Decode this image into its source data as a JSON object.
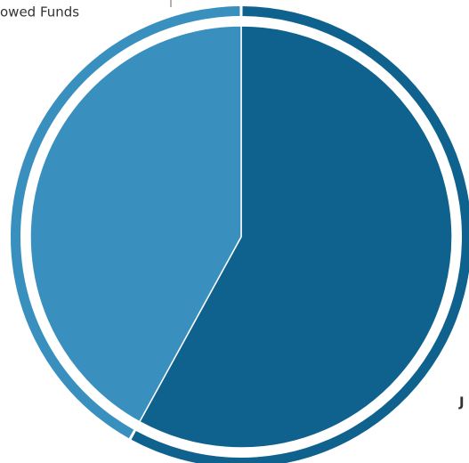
{
  "chart_data": {
    "type": "pie",
    "categories": [
      "J",
      "owed Funds"
    ],
    "values": [
      58,
      42
    ],
    "colors": [
      "#10628e",
      "#3990bf"
    ]
  }
}
